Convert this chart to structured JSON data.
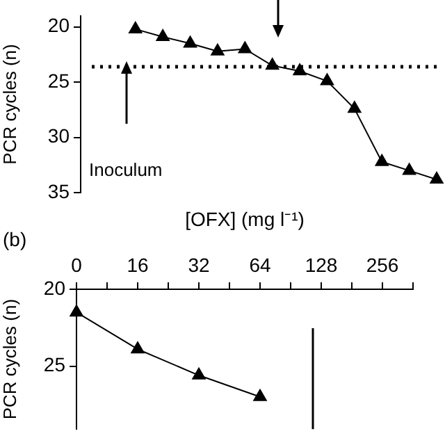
{
  "chart_data": [
    {
      "type": "line",
      "ylabel": "PCR cycles (n)",
      "categories": [
        null,
        null,
        null,
        null,
        null,
        null,
        null,
        null,
        null,
        null,
        null,
        null,
        null,
        null
      ],
      "series": [
        {
          "color": "#000000",
          "values": [
            null,
            null,
            20.2,
            20.9,
            21.5,
            22.2,
            22.0,
            23.5,
            24.0,
            24.9,
            27.4,
            32.2,
            33.0,
            33.8
          ]
        }
      ],
      "ylim": [
        35,
        19
      ],
      "yticks": [
        20,
        25,
        30,
        35
      ],
      "tick_labels": "y",
      "marker": "triangle",
      "line_style": "solid",
      "grid": false,
      "legend": false,
      "ref_lines": [
        {
          "axis": "y",
          "value": 23.6,
          "label": "Inoculum",
          "line_style": "dotted",
          "color": "#000000"
        }
      ]
    },
    {
      "type": "line",
      "xlabel": "[OFX] (mg l⁻¹)",
      "ylabel": "PCR cycles (n)",
      "annotations": [
        "(b)"
      ],
      "categories": [
        "0",
        null,
        "16",
        null,
        "32",
        null,
        "64",
        null,
        "128",
        null,
        "256",
        null
      ],
      "series": [
        {
          "color": "#000000",
          "values": [
            21.5,
            null,
            23.9,
            null,
            25.6,
            null,
            27.0,
            null,
            null,
            null,
            null,
            null
          ]
        }
      ],
      "ylim": [
        29.1,
        20
      ],
      "yticks": [
        20,
        25
      ],
      "marker": "triangle",
      "line_style": "solid",
      "grid": false,
      "legend": false,
      "ref_lines": [
        {
          "axis": "x",
          "value": "128",
          "color": "#000000",
          "line_style": "solid"
        }
      ]
    }
  ]
}
